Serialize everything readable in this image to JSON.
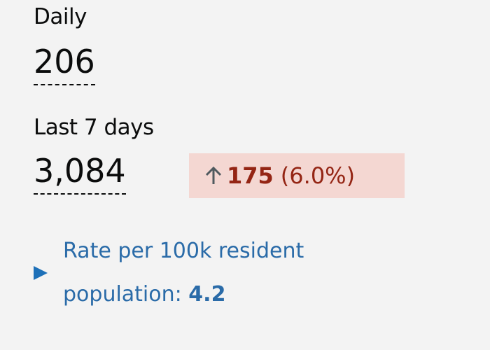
{
  "summary": {
    "daily": {
      "label": "Daily",
      "value": "206"
    },
    "weekly": {
      "label": "Last 7 days",
      "value": "3,084",
      "change": {
        "value": "175",
        "percent": "(6.0%)"
      }
    },
    "rate": {
      "label": "Rate per 100k resident population:",
      "value": "4.2"
    }
  }
}
